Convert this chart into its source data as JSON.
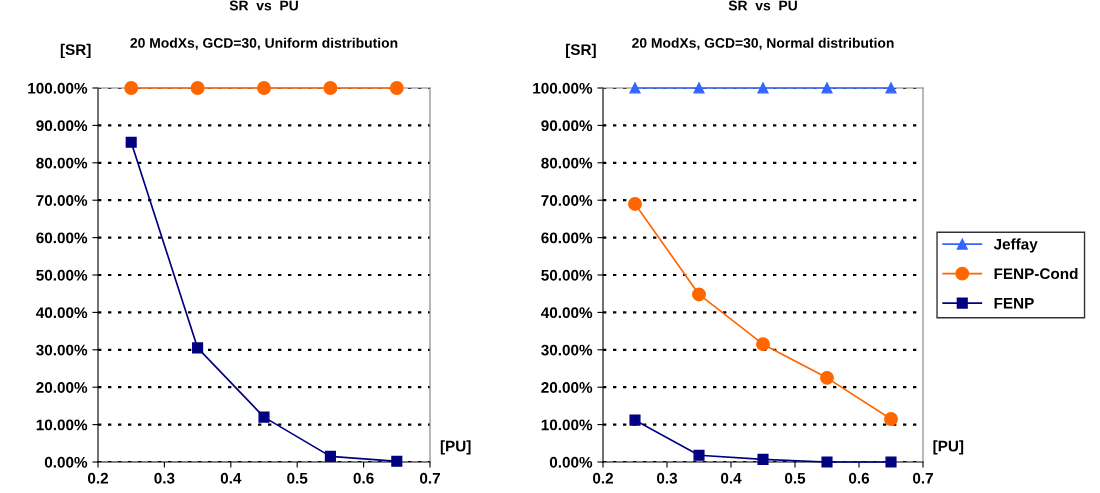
{
  "chart_data": [
    {
      "type": "line",
      "title": "SR  vs  PU",
      "subtitle": "20 ModXs, GCD=30, Uniform distribution",
      "ylabel": "[SR]",
      "xlabel": "[PU]",
      "x": [
        0.25,
        0.35,
        0.45,
        0.55,
        0.65
      ],
      "series": [
        {
          "color": "#ff6600",
          "marker": "circle",
          "values": [
            100,
            100,
            100,
            100,
            100
          ]
        },
        {
          "color": "#000080",
          "marker": "square",
          "values": [
            85.5,
            30.5,
            12,
            1.5,
            0.2
          ]
        }
      ],
      "xlim": [
        0.2,
        0.7
      ],
      "xticks": [
        0.2,
        0.3,
        0.4,
        0.5,
        0.6,
        0.7
      ],
      "ylim": [
        0,
        100
      ],
      "yticks": [
        {
          "value": 0,
          "label": "0.00%"
        },
        {
          "value": 10,
          "label": "10.00%"
        },
        {
          "value": 20,
          "label": "20.00%"
        },
        {
          "value": 30,
          "label": "30.00%"
        },
        {
          "value": 40,
          "label": "40.00%"
        },
        {
          "value": 50,
          "label": "50.00%"
        },
        {
          "value": 60,
          "label": "60.00%"
        },
        {
          "value": 70,
          "label": "70.00%"
        },
        {
          "value": 80,
          "label": "80.00%"
        },
        {
          "value": 90,
          "label": "90.00%"
        },
        {
          "value": 100,
          "label": "100.00%"
        }
      ],
      "grid": "y"
    },
    {
      "type": "line",
      "title": "SR  vs  PU",
      "subtitle": "20 ModXs, GCD=30, Normal distribution",
      "ylabel": "[SR]",
      "xlabel": "[PU]",
      "x": [
        0.25,
        0.35,
        0.45,
        0.55,
        0.65
      ],
      "series": [
        {
          "name": "Jeffay",
          "color": "#3366ff",
          "marker": "triangle",
          "values": [
            100,
            100,
            100,
            100,
            100
          ]
        },
        {
          "name": "FENP-Cond",
          "color": "#ff6600",
          "marker": "circle",
          "values": [
            69,
            44.8,
            31.5,
            22.5,
            11.5
          ]
        },
        {
          "name": "FENP",
          "color": "#000080",
          "marker": "square",
          "values": [
            11.2,
            1.8,
            0.7,
            0,
            0
          ]
        }
      ],
      "xlim": [
        0.2,
        0.7
      ],
      "xticks": [
        0.2,
        0.3,
        0.4,
        0.5,
        0.6,
        0.7
      ],
      "ylim": [
        0,
        100
      ],
      "yticks": [
        {
          "value": 0,
          "label": "0.00%"
        },
        {
          "value": 10,
          "label": "10.00%"
        },
        {
          "value": 20,
          "label": "20.00%"
        },
        {
          "value": 30,
          "label": "30.00%"
        },
        {
          "value": 40,
          "label": "40.00%"
        },
        {
          "value": 50,
          "label": "50.00%"
        },
        {
          "value": 60,
          "label": "60.00%"
        },
        {
          "value": 70,
          "label": "70.00%"
        },
        {
          "value": 80,
          "label": "80.00%"
        },
        {
          "value": 90,
          "label": "90.00%"
        },
        {
          "value": 100,
          "label": "100.00%"
        }
      ],
      "grid": "y",
      "legend": "right"
    }
  ]
}
